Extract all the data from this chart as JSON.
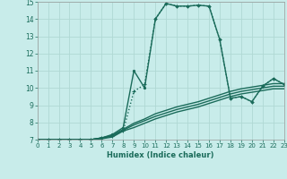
{
  "xlabel": "Humidex (Indice chaleur)",
  "bg_color": "#c8ecea",
  "grid_color": "#b0d8d4",
  "line_color": "#1a6b5a",
  "xlim": [
    0,
    23
  ],
  "ylim": [
    7,
    15
  ],
  "xticks": [
    0,
    1,
    2,
    3,
    4,
    5,
    6,
    7,
    8,
    9,
    10,
    11,
    12,
    13,
    14,
    15,
    16,
    17,
    18,
    19,
    20,
    21,
    22,
    23
  ],
  "yticks": [
    7,
    8,
    9,
    10,
    11,
    12,
    13,
    14,
    15
  ],
  "lines": [
    {
      "x": [
        0,
        1,
        2,
        3,
        4,
        5,
        6,
        7,
        8,
        9,
        10,
        11,
        12,
        13,
        14,
        15,
        16,
        17,
        18,
        19,
        20,
        21,
        22,
        23
      ],
      "y": [
        7.0,
        7.0,
        7.0,
        7.0,
        7.0,
        7.0,
        7.1,
        7.2,
        7.5,
        9.8,
        10.2,
        14.0,
        14.9,
        14.75,
        14.75,
        14.8,
        14.75,
        12.8,
        9.4,
        9.5,
        9.2,
        10.1,
        10.55,
        10.2
      ],
      "linestyle": "dotted",
      "marker": "+",
      "markersize": 3.5,
      "lw": 1.0
    },
    {
      "x": [
        0,
        1,
        2,
        3,
        4,
        5,
        6,
        7,
        8,
        9,
        10,
        11,
        12,
        13,
        14,
        15,
        16,
        17,
        18,
        19,
        20,
        21,
        22,
        23
      ],
      "y": [
        7.0,
        7.0,
        7.0,
        7.0,
        7.0,
        7.0,
        7.1,
        7.3,
        7.7,
        11.0,
        10.0,
        14.0,
        14.9,
        14.75,
        14.75,
        14.8,
        14.75,
        12.8,
        9.4,
        9.5,
        9.2,
        10.1,
        10.55,
        10.2
      ],
      "linestyle": "solid",
      "marker": ".",
      "markersize": 3.0,
      "lw": 1.0
    },
    {
      "x": [
        0,
        1,
        2,
        3,
        4,
        5,
        6,
        7,
        8,
        9,
        10,
        11,
        12,
        13,
        14,
        15,
        16,
        17,
        18,
        19,
        20,
        21,
        22,
        23
      ],
      "y": [
        7.0,
        7.0,
        7.0,
        7.0,
        7.0,
        7.0,
        7.05,
        7.15,
        7.5,
        7.7,
        7.95,
        8.2,
        8.4,
        8.6,
        8.75,
        8.9,
        9.1,
        9.3,
        9.5,
        9.65,
        9.75,
        9.85,
        9.95,
        9.95
      ],
      "linestyle": "solid",
      "marker": null,
      "markersize": 0,
      "lw": 1.0
    },
    {
      "x": [
        0,
        1,
        2,
        3,
        4,
        5,
        6,
        7,
        8,
        9,
        10,
        11,
        12,
        13,
        14,
        15,
        16,
        17,
        18,
        19,
        20,
        21,
        22,
        23
      ],
      "y": [
        7.0,
        7.0,
        7.0,
        7.0,
        7.0,
        7.0,
        7.1,
        7.2,
        7.55,
        7.85,
        8.1,
        8.35,
        8.55,
        8.75,
        8.9,
        9.05,
        9.25,
        9.45,
        9.65,
        9.8,
        9.9,
        10.0,
        10.1,
        10.1
      ],
      "linestyle": "solid",
      "marker": null,
      "markersize": 0,
      "lw": 1.0
    },
    {
      "x": [
        0,
        1,
        2,
        3,
        4,
        5,
        6,
        7,
        8,
        9,
        10,
        11,
        12,
        13,
        14,
        15,
        16,
        17,
        18,
        19,
        20,
        21,
        22,
        23
      ],
      "y": [
        7.0,
        7.0,
        7.0,
        7.0,
        7.0,
        7.0,
        7.1,
        7.25,
        7.6,
        7.95,
        8.2,
        8.5,
        8.7,
        8.9,
        9.05,
        9.2,
        9.4,
        9.6,
        9.8,
        9.95,
        10.05,
        10.15,
        10.25,
        10.25
      ],
      "linestyle": "solid",
      "marker": null,
      "markersize": 0,
      "lw": 1.0
    }
  ]
}
